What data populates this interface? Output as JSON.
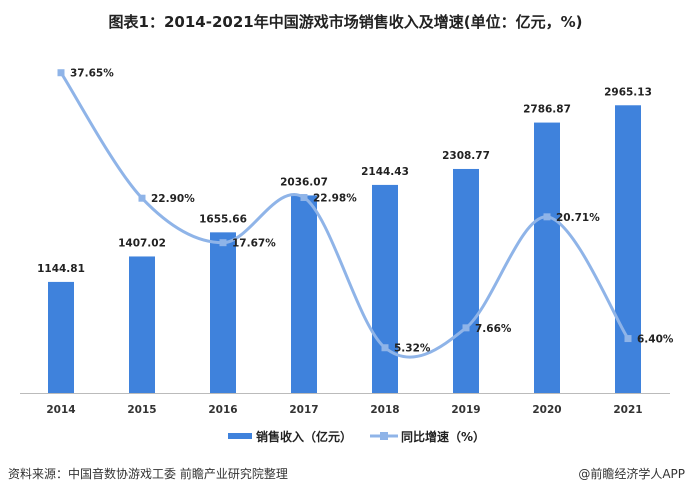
{
  "title": "图表1：2014-2021年中国游戏市场销售收入及增速(单位：亿元，%)",
  "source": "资料来源：中国音数协游戏工委 前瞻产业研究院整理",
  "credit": "@前瞻经济学人APP",
  "chart_data": {
    "type": "bar+line",
    "categories": [
      "2014",
      "2015",
      "2016",
      "2017",
      "2018",
      "2019",
      "2020",
      "2021"
    ],
    "series": [
      {
        "name": "销售收入（亿元）",
        "type": "bar",
        "color": "#3f82dc",
        "values": [
          1144.81,
          1407.02,
          1655.66,
          2036.07,
          2144.43,
          2308.77,
          2786.87,
          2965.13
        ],
        "labels": [
          "1144.81",
          "1407.02",
          "1655.66",
          "2036.07",
          "2144.43",
          "2308.77",
          "2786.87",
          "2965.13"
        ]
      },
      {
        "name": "同比增速（%）",
        "type": "line",
        "color": "#8fb4e8",
        "values": [
          37.65,
          22.9,
          17.67,
          22.98,
          5.32,
          7.66,
          20.71,
          6.4
        ],
        "labels": [
          "37.65%",
          "22.90%",
          "17.67%",
          "22.98%",
          "5.32%",
          "7.66%",
          "20.71%",
          "6.40%"
        ]
      }
    ],
    "ylim_left": [
      0,
      4050
    ],
    "ylim_right": [
      0,
      46.2
    ],
    "legend": "bottom-center",
    "grid": false
  }
}
